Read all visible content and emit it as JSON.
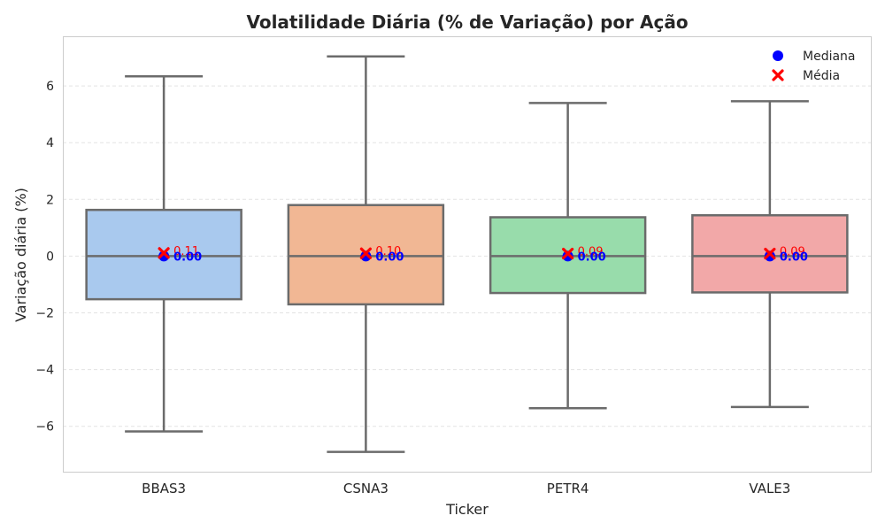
{
  "chart_data": {
    "type": "box",
    "title": "Volatilidade Diária (% de Variação) por Ação",
    "xlabel": "Ticker",
    "ylabel": "Variação diária (%)",
    "ylim": [
      -7.6,
      7.75
    ],
    "yticks": [
      -6,
      -4,
      -2,
      0,
      2,
      4,
      6
    ],
    "ytick_labels": [
      "−6",
      "−4",
      "−2",
      "0",
      "2",
      "4",
      "6"
    ],
    "grid": true,
    "legend_position": "top-right",
    "legend": [
      {
        "label": "Mediana",
        "marker": "circle",
        "color": "#0000ff"
      },
      {
        "label": "Média",
        "marker": "x",
        "color": "#ff0000"
      }
    ],
    "categories": [
      "BBAS3",
      "CSNA3",
      "PETR4",
      "VALE3"
    ],
    "boxes": [
      {
        "category": "BBAS3",
        "color": "#a9c9ee",
        "whisker_low": -6.18,
        "q1": -1.52,
        "median": 0.0,
        "q3": 1.63,
        "whisker_high": 6.34,
        "mean": 0.11,
        "median_label": "0.00",
        "mean_label": "0.11"
      },
      {
        "category": "CSNA3",
        "color": "#f1b794",
        "whisker_low": -6.9,
        "q1": -1.7,
        "median": 0.0,
        "q3": 1.8,
        "whisker_high": 7.04,
        "mean": 0.1,
        "median_label": "0.00",
        "mean_label": "0.10"
      },
      {
        "category": "PETR4",
        "color": "#98dcab",
        "whisker_low": -5.36,
        "q1": -1.3,
        "median": 0.0,
        "q3": 1.37,
        "whisker_high": 5.4,
        "mean": 0.09,
        "median_label": "0.00",
        "mean_label": "0.09"
      },
      {
        "category": "VALE3",
        "color": "#f2a8a8",
        "whisker_low": -5.32,
        "q1": -1.28,
        "median": 0.0,
        "q3": 1.44,
        "whisker_high": 5.46,
        "mean": 0.09,
        "median_label": "0.00",
        "mean_label": "0.09"
      }
    ],
    "colors": {
      "box_edge": "#6b6b6b",
      "grid": "#e3e3e3",
      "frame": "#cccccc",
      "median_marker": "#0000ff",
      "mean_marker": "#ff0000"
    }
  }
}
